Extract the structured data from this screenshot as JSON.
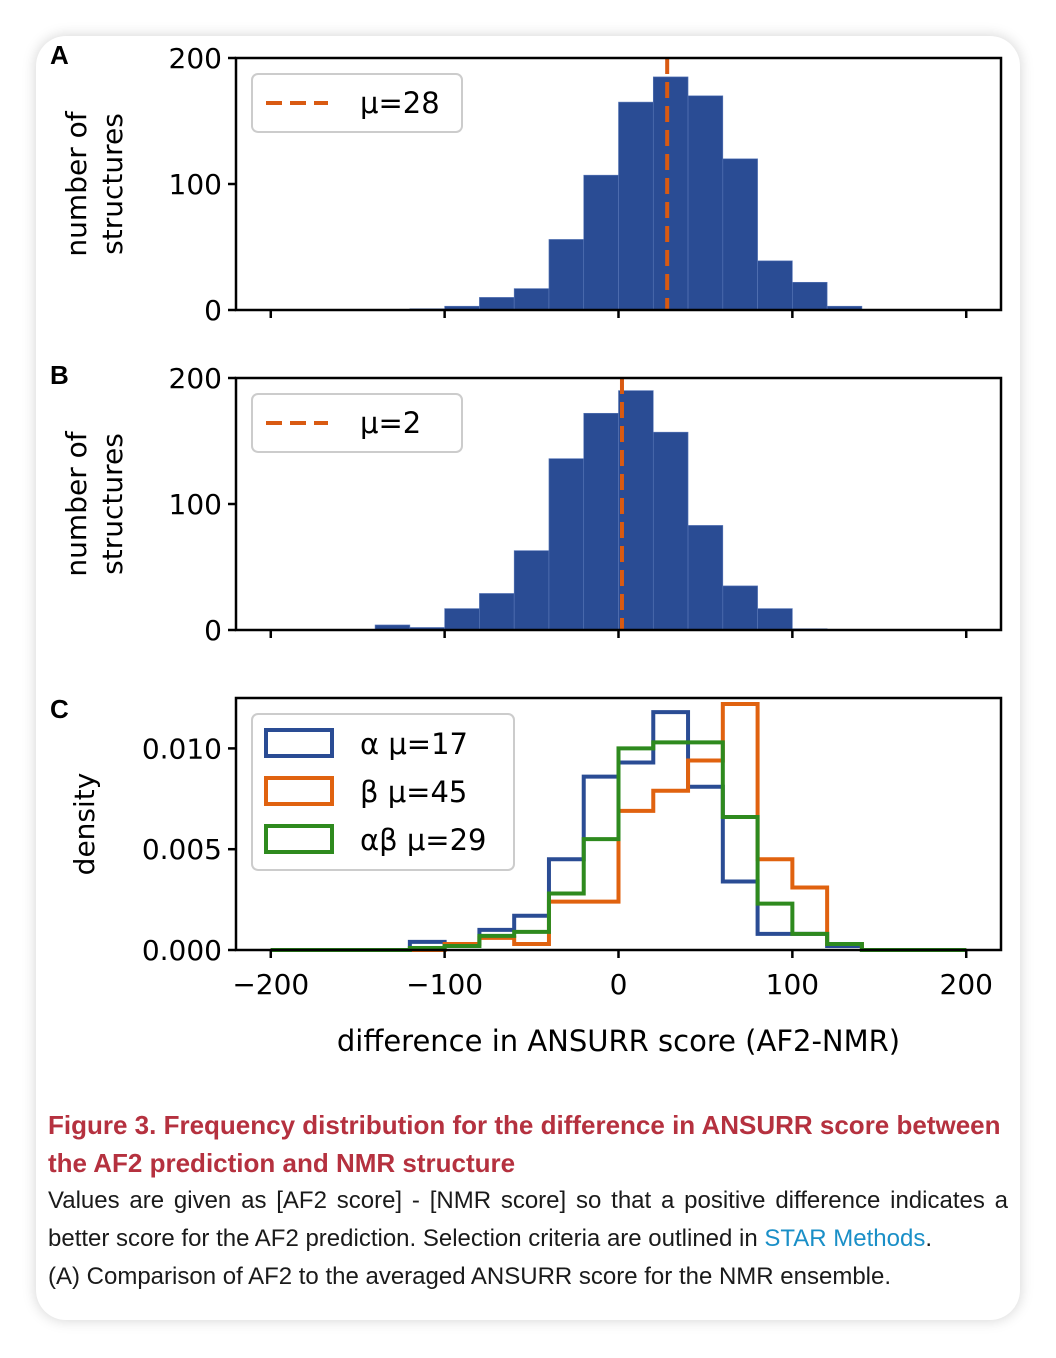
{
  "chart_data": [
    {
      "type": "bar",
      "panel": "A",
      "ylabel": "number of\nstructures",
      "ylim": [
        0,
        200
      ],
      "xlim": [
        -220,
        220
      ],
      "yticks": [
        "0",
        "100",
        "200"
      ],
      "bin_edges": [
        -200,
        -180,
        -160,
        -140,
        -120,
        -100,
        -80,
        -60,
        -40,
        -20,
        0,
        20,
        40,
        60,
        80,
        100,
        120,
        140,
        160,
        180,
        200
      ],
      "counts": [
        0,
        0,
        0,
        0,
        1,
        3,
        10,
        17,
        56,
        107,
        165,
        185,
        170,
        120,
        39,
        22,
        3,
        0,
        0,
        0
      ],
      "mean_line": {
        "value": 28,
        "label": "μ=28"
      },
      "bar_color": "#2a4c94",
      "line_color": "#d95a12",
      "legend_position": "top-left"
    },
    {
      "type": "bar",
      "panel": "B",
      "ylabel": "number of\nstructures",
      "ylim": [
        0,
        200
      ],
      "xlim": [
        -220,
        220
      ],
      "yticks": [
        "0",
        "100",
        "200"
      ],
      "bin_edges": [
        -200,
        -180,
        -160,
        -140,
        -120,
        -100,
        -80,
        -60,
        -40,
        -20,
        0,
        20,
        40,
        60,
        80,
        100,
        120,
        140,
        160,
        180,
        200
      ],
      "counts": [
        0,
        0,
        0,
        4,
        2,
        17,
        29,
        63,
        136,
        172,
        190,
        157,
        83,
        35,
        17,
        1,
        0,
        0,
        0,
        0
      ],
      "mean_line": {
        "value": 2,
        "label": "μ=2"
      },
      "bar_color": "#2a4c94",
      "line_color": "#d95a12",
      "legend_position": "top-left"
    },
    {
      "type": "line",
      "panel": "C",
      "ylabel": "density",
      "xlabel": "difference in ANSURR score (AF2-NMR)",
      "ylim": [
        0,
        0.0125
      ],
      "xlim": [
        -220,
        220
      ],
      "yticks": [
        "0.000",
        "0.005",
        "0.010"
      ],
      "xticks": [
        "−200",
        "−100",
        "0",
        "100",
        "200"
      ],
      "xtick_values": [
        -200,
        -100,
        0,
        100,
        200
      ],
      "bin_edges": [
        -200,
        -180,
        -160,
        -140,
        -120,
        -100,
        -80,
        -60,
        -40,
        -20,
        0,
        20,
        40,
        60,
        80,
        100,
        120,
        140,
        160,
        180,
        200
      ],
      "legend_position": "top-left",
      "series": [
        {
          "name": "α μ=17",
          "color": "#2a4c94",
          "values": [
            0,
            0,
            0,
            0,
            0.0004,
            0.0003,
            0.001,
            0.0017,
            0.0045,
            0.0086,
            0.0093,
            0.0118,
            0.0081,
            0.0034,
            0.0008,
            0.0008,
            0.0002,
            0,
            0,
            0
          ]
        },
        {
          "name": "β μ=45",
          "color": "#e0620f",
          "values": [
            0,
            0,
            0,
            0,
            0,
            0.0003,
            0.0006,
            0.0003,
            0.0024,
            0.0024,
            0.0069,
            0.0079,
            0.0094,
            0.0122,
            0.0045,
            0.0031,
            0.0003,
            0,
            0,
            0
          ]
        },
        {
          "name": "αβ μ=29",
          "color": "#2e8a1e",
          "values": [
            0,
            0,
            0,
            0,
            0.0001,
            0.0002,
            0.0007,
            0.0009,
            0.0028,
            0.0055,
            0.01,
            0.0103,
            0.0103,
            0.0066,
            0.0023,
            0.0008,
            0.0003,
            0,
            0,
            0
          ]
        }
      ]
    }
  ],
  "caption": {
    "title": "Figure 3.  Frequency distribution for the difference in ANSURR score between the AF2 prediction and NMR structure",
    "body": "Values are given as [AF2 score] - [NMR score] so that a positive difference indicates a better score for the AF2 prediction. Selection criteria are outlined in ",
    "link": "STAR Methods",
    "body_end": ".",
    "next_line": "(A) Comparison of AF2 to the averaged ANSURR score for the NMR ensemble."
  }
}
